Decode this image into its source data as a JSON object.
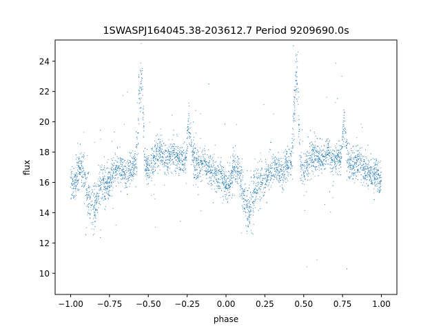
{
  "chart_data": {
    "type": "scatter",
    "title": "1SWASPJ164045.38-203612.7 Period 9209690.0s",
    "xlabel": "phase",
    "ylabel": "flux",
    "xlim": [
      -1.1,
      1.1
    ],
    "ylim": [
      8.6,
      25.4
    ],
    "xticks": [
      -1.0,
      -0.75,
      -0.5,
      -0.25,
      0.0,
      0.25,
      0.5,
      0.75,
      1.0
    ],
    "xtick_labels": [
      "−1.00",
      "−0.75",
      "−0.50",
      "−0.25",
      "0.00",
      "0.25",
      "0.50",
      "0.75",
      "1.00"
    ],
    "yticks": [
      10,
      12,
      14,
      16,
      18,
      20,
      22,
      24
    ],
    "ytick_labels": [
      "10",
      "12",
      "14",
      "16",
      "18",
      "20",
      "22",
      "24"
    ],
    "grid": false,
    "marker_color": "#1f77b4",
    "series": [
      {
        "phase": [
          0.0,
          0.02,
          0.04,
          0.06,
          0.08,
          0.1,
          0.12,
          0.14,
          0.16,
          0.18,
          0.2,
          0.22,
          0.24,
          0.26,
          0.28,
          0.3,
          0.32,
          0.34,
          0.36,
          0.38,
          0.4,
          0.42,
          0.43,
          0.44,
          0.45,
          0.46,
          0.48,
          0.5,
          0.52,
          0.54,
          0.56,
          0.58,
          0.6,
          0.62,
          0.64,
          0.66,
          0.68,
          0.7,
          0.72,
          0.74,
          0.76,
          0.78,
          0.8,
          0.82,
          0.84,
          0.86,
          0.88,
          0.9,
          0.92,
          0.94,
          0.96,
          0.98,
          1.0
        ],
        "flux": [
          16.0,
          15.8,
          16.6,
          16.9,
          16.7,
          15.8,
          14.6,
          14.2,
          14.4,
          15.4,
          16.0,
          15.6,
          16.0,
          16.4,
          16.7,
          16.9,
          17.0,
          16.8,
          16.5,
          16.9,
          17.1,
          17.4,
          18.8,
          21.5,
          22.5,
          22.8,
          17.0,
          16.8,
          17.2,
          17.6,
          17.8,
          17.9,
          17.6,
          17.5,
          17.8,
          18.0,
          17.6,
          17.4,
          17.7,
          17.3,
          20.2,
          17.9,
          17.4,
          17.1,
          17.2,
          17.3,
          16.9,
          16.8,
          16.6,
          16.4,
          16.6,
          16.2,
          16.0
        ],
        "spread": [
          0.9,
          1.0,
          1.0,
          0.9,
          1.1,
          1.2,
          1.3,
          1.4,
          1.3,
          1.2,
          1.2,
          1.1,
          1.0,
          0.9,
          0.8,
          0.8,
          0.8,
          0.8,
          0.9,
          0.9,
          0.9,
          1.0,
          1.4,
          1.6,
          1.4,
          1.2,
          0.8,
          0.8,
          0.9,
          0.9,
          1.0,
          1.0,
          0.9,
          0.8,
          0.8,
          0.9,
          0.8,
          0.8,
          0.8,
          0.8,
          0.9,
          1.0,
          1.0,
          0.9,
          0.8,
          0.8,
          0.8,
          0.9,
          0.9,
          0.9,
          0.9,
          0.9,
          0.9
        ]
      }
    ]
  }
}
